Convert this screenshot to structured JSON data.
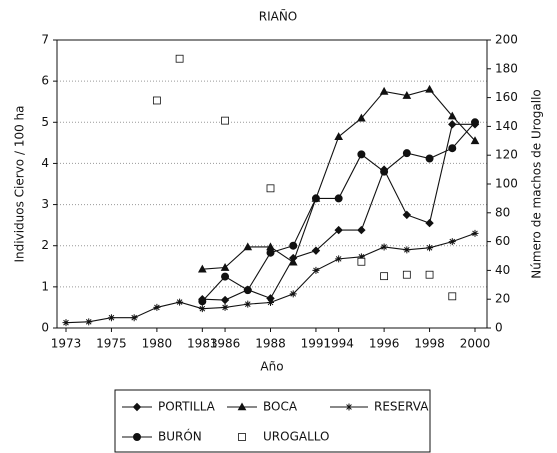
{
  "chart_data": {
    "type": "line",
    "title": "RIAÑO",
    "xlabel": "Año",
    "ylabel": "Individuos Ciervo / 100 ha",
    "y2label": "Número de machos de Urogallo",
    "categories": [
      "1973",
      null,
      "1975",
      null,
      "1980",
      null,
      "1983",
      "1986",
      null,
      "1988",
      null,
      "1991",
      "1994",
      null,
      "1996",
      null,
      "1998",
      null,
      "2000"
    ],
    "ylim": [
      0,
      7
    ],
    "yticks": [
      0,
      1,
      2,
      3,
      4,
      5,
      6,
      7
    ],
    "y2lim": [
      0,
      200
    ],
    "y2ticks": [
      0,
      20,
      40,
      60,
      80,
      100,
      120,
      140,
      160,
      180,
      200
    ],
    "grid": true,
    "series": [
      {
        "name": "PORTILLA",
        "color": "#111111",
        "marker": "diamond",
        "line": true,
        "values": [
          null,
          null,
          null,
          null,
          null,
          null,
          0.7,
          0.68,
          0.93,
          0.72,
          1.7,
          1.88,
          2.38,
          2.38,
          3.85,
          2.75,
          2.55,
          4.95,
          4.95
        ]
      },
      {
        "name": "BOCA",
        "color": "#111111",
        "marker": "triangle",
        "line": true,
        "values": [
          null,
          null,
          null,
          null,
          null,
          null,
          1.43,
          1.47,
          1.97,
          1.97,
          1.6,
          3.15,
          4.65,
          5.1,
          5.75,
          5.65,
          5.8,
          5.15,
          4.55
        ]
      },
      {
        "name": "RESERVA",
        "color": "#111111",
        "marker": "star",
        "line": true,
        "values": [
          0.13,
          0.15,
          0.25,
          0.25,
          0.5,
          0.63,
          0.47,
          0.5,
          0.58,
          0.62,
          0.83,
          1.4,
          1.68,
          1.73,
          1.97,
          1.9,
          1.95,
          2.1,
          2.3
        ]
      },
      {
        "name": "BURÓN",
        "color": "#111111",
        "marker": "circle",
        "line": true,
        "values": [
          null,
          null,
          null,
          null,
          null,
          null,
          0.65,
          1.25,
          0.92,
          1.83,
          2.0,
          3.15,
          3.15,
          4.22,
          3.8,
          4.25,
          4.12,
          4.37,
          5.0
        ]
      },
      {
        "name": "UROGALLO",
        "color": "#111111",
        "marker": "square",
        "line": false,
        "axis": "y2",
        "values": [
          null,
          null,
          null,
          null,
          158,
          187,
          null,
          144,
          null,
          97,
          null,
          null,
          null,
          46,
          36,
          37,
          37,
          22,
          null
        ]
      }
    ]
  }
}
